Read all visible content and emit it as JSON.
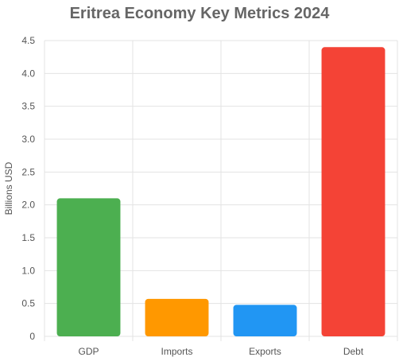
{
  "chart_data": {
    "type": "bar",
    "title": "Eritrea Economy Key Metrics 2024",
    "xlabel": "",
    "ylabel": "Billions USD",
    "categories": [
      "GDP",
      "Imports",
      "Exports",
      "Debt"
    ],
    "values": [
      2.1,
      0.57,
      0.48,
      4.4
    ],
    "colors": [
      "#4caf50",
      "#ff9800",
      "#2196f3",
      "#f44336"
    ],
    "ylim": [
      0,
      4.5
    ],
    "yticks": [
      "0",
      "0.5",
      "1.0",
      "1.5",
      "2.0",
      "2.5",
      "3.0",
      "3.5",
      "4.0",
      "4.5"
    ],
    "grid": true,
    "legend": "none"
  }
}
